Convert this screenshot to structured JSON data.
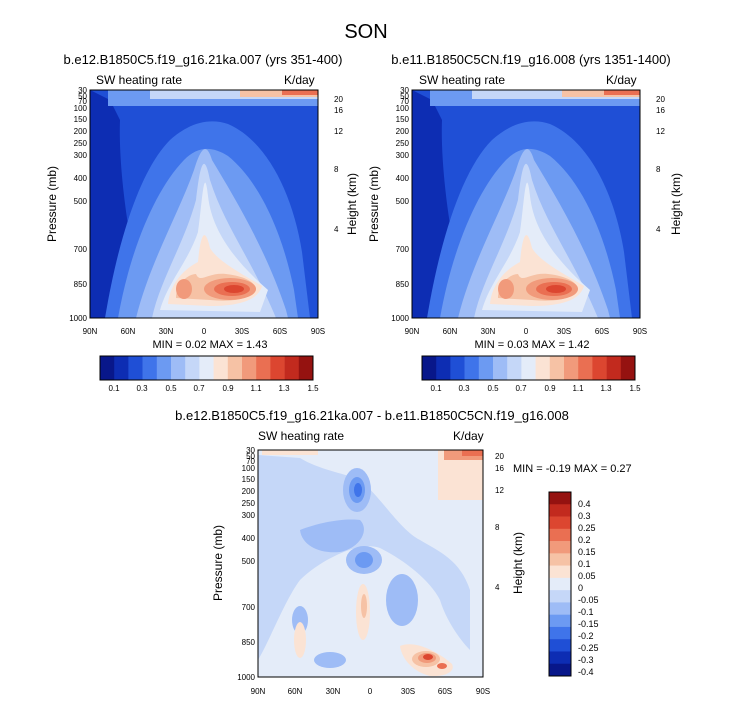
{
  "figure": {
    "title": "SON"
  },
  "chart_data": [
    {
      "type": "heatmap",
      "title": "b.e12.B1850C5.f19_g16.21ka.007 (yrs 351-400)",
      "left_label": "SW heating rate",
      "right_label": "K/day",
      "ylabel": "Pressure (mb)",
      "ylabel_right": "Height (km)",
      "x_ticks": [
        "90N",
        "60N",
        "30N",
        "0",
        "30S",
        "60S",
        "90S"
      ],
      "y_ticks": [
        "30",
        "50",
        "70",
        "100",
        "150",
        "200",
        "250",
        "300",
        "400",
        "500",
        "700",
        "850",
        "1000"
      ],
      "y_ticks_right": [
        "20",
        "16",
        "12",
        "8",
        "4"
      ],
      "stats_text": "MIN =   0.02  MAX =   1.43",
      "min": 0.02,
      "max": 1.43,
      "colorbar": {
        "labels": [
          "0.1",
          "0.3",
          "0.5",
          "0.7",
          "0.9",
          "1.1",
          "1.3",
          "1.5"
        ],
        "levels": [
          0.1,
          0.2,
          0.3,
          0.4,
          0.5,
          0.6,
          0.7,
          0.8,
          0.9,
          1.0,
          1.1,
          1.2,
          1.3,
          1.4,
          1.5
        ]
      }
    },
    {
      "type": "heatmap",
      "title": "b.e11.B1850C5CN.f19_g16.008 (yrs 1351-1400)",
      "left_label": "SW heating rate",
      "right_label": "K/day",
      "ylabel": "Pressure (mb)",
      "ylabel_right": "Height (km)",
      "x_ticks": [
        "90N",
        "60N",
        "30N",
        "0",
        "30S",
        "60S",
        "90S"
      ],
      "y_ticks": [
        "30",
        "50",
        "70",
        "100",
        "150",
        "200",
        "250",
        "300",
        "400",
        "500",
        "700",
        "850",
        "1000"
      ],
      "y_ticks_right": [
        "20",
        "16",
        "12",
        "8",
        "4"
      ],
      "stats_text": "MIN =   0.03  MAX =   1.42",
      "min": 0.03,
      "max": 1.42,
      "colorbar": {
        "labels": [
          "0.1",
          "0.3",
          "0.5",
          "0.7",
          "0.9",
          "1.1",
          "1.3",
          "1.5"
        ],
        "levels": [
          0.1,
          0.2,
          0.3,
          0.4,
          0.5,
          0.6,
          0.7,
          0.8,
          0.9,
          1.0,
          1.1,
          1.2,
          1.3,
          1.4,
          1.5
        ]
      }
    },
    {
      "type": "heatmap",
      "title": "b.e12.B1850C5.f19_g16.21ka.007 - b.e11.B1850C5CN.f19_g16.008",
      "left_label": "SW heating rate",
      "right_label": "K/day",
      "ylabel": "Pressure (mb)",
      "ylabel_right": "Height (km)",
      "x_ticks": [
        "90N",
        "60N",
        "30N",
        "0",
        "30S",
        "60S",
        "90S"
      ],
      "y_ticks": [
        "30",
        "50",
        "70",
        "100",
        "150",
        "200",
        "250",
        "300",
        "400",
        "500",
        "700",
        "850",
        "1000"
      ],
      "y_ticks_right": [
        "20",
        "16",
        "12",
        "8",
        "4"
      ],
      "stats_text": "MIN =  -0.19  MAX =   0.27",
      "min": -0.19,
      "max": 0.27,
      "colorbar": {
        "labels": [
          "0.4",
          "0.3",
          "0.25",
          "0.2",
          "0.15",
          "0.1",
          "0.05",
          "0",
          "-0.05",
          "-0.1",
          "-0.15",
          "-0.2",
          "-0.25",
          "-0.3",
          "-0.4"
        ],
        "levels": [
          0.4,
          0.3,
          0.25,
          0.2,
          0.15,
          0.1,
          0.05,
          0,
          -0.05,
          -0.1,
          -0.15,
          -0.2,
          -0.25,
          -0.3,
          -0.4
        ]
      }
    }
  ],
  "colors": {
    "colorbar_seq": [
      "#08178a",
      "#0d2db3",
      "#1f4fd6",
      "#3f74ea",
      "#6c9af2",
      "#9ebcf6",
      "#c5d7f8",
      "#e4ecf9",
      "#fbe3d4",
      "#f6c2a5",
      "#f19a7b",
      "#ea6f52",
      "#dc4630",
      "#c22a1e",
      "#951210"
    ],
    "diverging_seq": [
      "#951210",
      "#c22a1e",
      "#dc4630",
      "#ea6f52",
      "#f19a7b",
      "#f6c2a5",
      "#fbe3d4",
      "#e4ecf9",
      "#c5d7f8",
      "#9ebcf6",
      "#6c9af2",
      "#3f74ea",
      "#1f4fd6",
      "#0d2db3",
      "#08178a"
    ]
  }
}
